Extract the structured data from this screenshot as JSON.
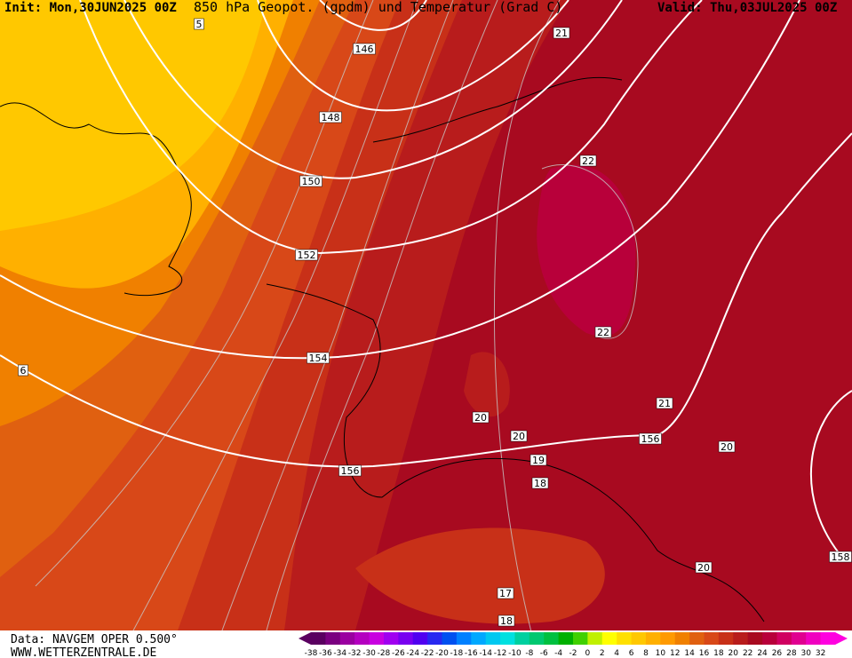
{
  "header": {
    "init": "Init: Mon,30JUN2025 00Z",
    "title": "850 hPa Geopot. (gpdm) und Temperatur (Grad C)",
    "valid": "Valid: Thu,03JUL2025 00Z"
  },
  "contour_labels": [
    "5",
    "146",
    "21",
    "148",
    "150",
    "22",
    "152",
    "154",
    "22",
    "6",
    "21",
    "20",
    "20",
    "156",
    "20",
    "156",
    "19",
    "18",
    "158",
    "20",
    "17",
    "18"
  ],
  "footer": {
    "data": "Data: NAVGEM OPER 0.500°",
    "site": "WWW.WETTERZENTRALE.DE"
  },
  "scale": {
    "labels": [
      -38,
      -36,
      -34,
      -32,
      -30,
      -28,
      -26,
      -24,
      -22,
      -20,
      -18,
      -16,
      -14,
      -12,
      -10,
      -8,
      -6,
      -4,
      -2,
      0,
      2,
      4,
      6,
      8,
      10,
      12,
      14,
      16,
      18,
      20,
      22,
      24,
      26,
      28,
      30,
      32
    ],
    "colors": [
      "#5a0060",
      "#7a0080",
      "#9a00a0",
      "#b400c0",
      "#c800e0",
      "#a000f0",
      "#7800f0",
      "#5000f0",
      "#2828f0",
      "#0050f0",
      "#0080ff",
      "#00a8ff",
      "#00c8f0",
      "#00e0e0",
      "#00d0a0",
      "#00c870",
      "#00c040",
      "#00b000",
      "#40d000",
      "#c0f000",
      "#ffff00",
      "#ffe000",
      "#ffc800",
      "#ffb000",
      "#ff9a00",
      "#f08000",
      "#e06010",
      "#d84818",
      "#c83018",
      "#b81c1c",
      "#a80a20",
      "#b8003a",
      "#d00060",
      "#e00090",
      "#f000c0",
      "#ff00e0"
    ]
  }
}
